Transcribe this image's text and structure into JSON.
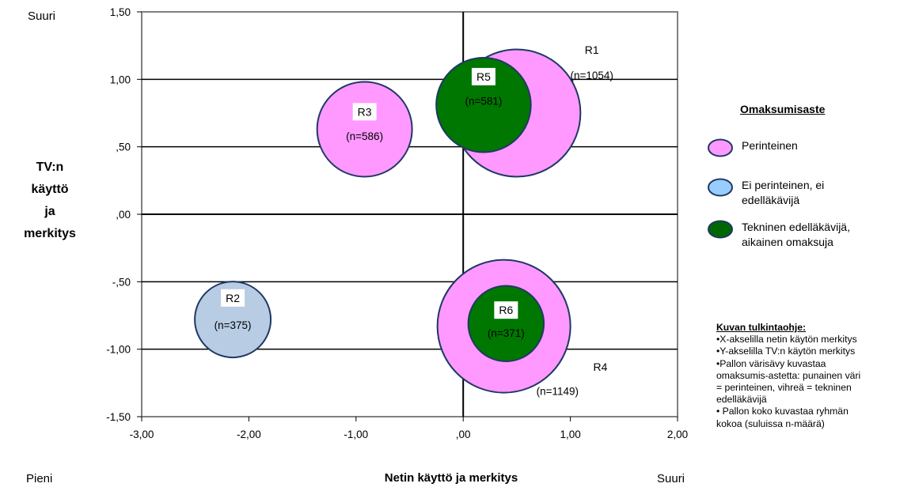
{
  "corner_labels": {
    "y_high": "Suuri",
    "x_low": "Pieni",
    "x_high": "Suuri"
  },
  "axis_titles": {
    "y_lines": [
      "TV:n",
      "käyttö",
      "ja",
      "merkitys"
    ],
    "x": "Netin käyttö ja merkitys"
  },
  "legend": {
    "title": "Omaksumisaste",
    "items": [
      {
        "label_lines": [
          "Perinteinen"
        ],
        "color": "#ff99ff"
      },
      {
        "label_lines": [
          "Ei perinteinen, ei",
          "edelläkävijä"
        ],
        "color": "#99ccff"
      },
      {
        "label_lines": [
          "Tekninen edelläkävijä,",
          "aikainen omaksuja"
        ],
        "color": "#006600"
      }
    ]
  },
  "notes": {
    "title": "Kuvan tulkintaohje:",
    "lines": [
      "•X-akselilla netin käytön merkitys",
      "•Y-akselilla TV:n käytön merkitys",
      "•Pallon värisävy kuvastaa",
      "omaksumis-astetta: punainen väri",
      "= perinteinen, vihreä = tekninen",
      "edelläkävijä",
      "• Pallon koko kuvastaa ryhmän",
      "kokoa (suluissa n-määrä)"
    ]
  },
  "chart_data": {
    "type": "bubble",
    "xlim": [
      -3,
      2
    ],
    "ylim": [
      -1.5,
      1.5
    ],
    "x_ticks": [
      "-3,00",
      "-2,00",
      "-1,00",
      ",00",
      "1,00",
      "2,00"
    ],
    "y_ticks": [
      "1,50",
      "1,00",
      ",50",
      ",00",
      "-,50",
      "-1,00",
      "-1,50"
    ],
    "x_tick_values": [
      -3,
      -2,
      -1,
      0,
      1,
      2
    ],
    "y_tick_values": [
      1.5,
      1,
      0.5,
      0,
      -0.5,
      -1,
      -1.5
    ],
    "grid": "horizontal",
    "bubbles": [
      {
        "id": "R1",
        "n_label": "(n=1054)",
        "x": 0.5,
        "y": 0.75,
        "n": 1054,
        "color": "#ff99ff",
        "label_dx": 0.7,
        "label_dy": 0.47,
        "n_dx": 0.7,
        "n_dy": 0.28
      },
      {
        "id": "R4",
        "n_label": "(n=1149)",
        "x": 0.38,
        "y": -0.83,
        "n": 1149,
        "color": "#ff99ff",
        "label_dx": 0.9,
        "label_dy": -0.3,
        "n_dx": 0.5,
        "n_dy": -0.48
      },
      {
        "id": "R3",
        "n_label": "(n=586)",
        "x": -0.92,
        "y": 0.63,
        "n": 586,
        "color": "#ff99ff",
        "label_dx": 0,
        "label_dy": 0.13,
        "n_dx": 0,
        "n_dy": -0.05
      },
      {
        "id": "R2",
        "n_label": "(n=375)",
        "x": -2.15,
        "y": -0.78,
        "n": 375,
        "color": "#b8cce4",
        "label_dx": 0,
        "label_dy": 0.16,
        "n_dx": 0,
        "n_dy": -0.04
      },
      {
        "id": "R5",
        "n_label": "(n=581)",
        "x": 0.19,
        "y": 0.81,
        "n": 581,
        "color": "#007700",
        "label_dx": 0,
        "label_dy": 0.21,
        "n_dx": 0,
        "n_dy": 0.03
      },
      {
        "id": "R6",
        "n_label": "(n=371)",
        "x": 0.4,
        "y": -0.81,
        "n": 371,
        "color": "#007700",
        "label_dx": 0,
        "label_dy": 0.1,
        "n_dx": 0,
        "n_dy": -0.07
      }
    ]
  }
}
